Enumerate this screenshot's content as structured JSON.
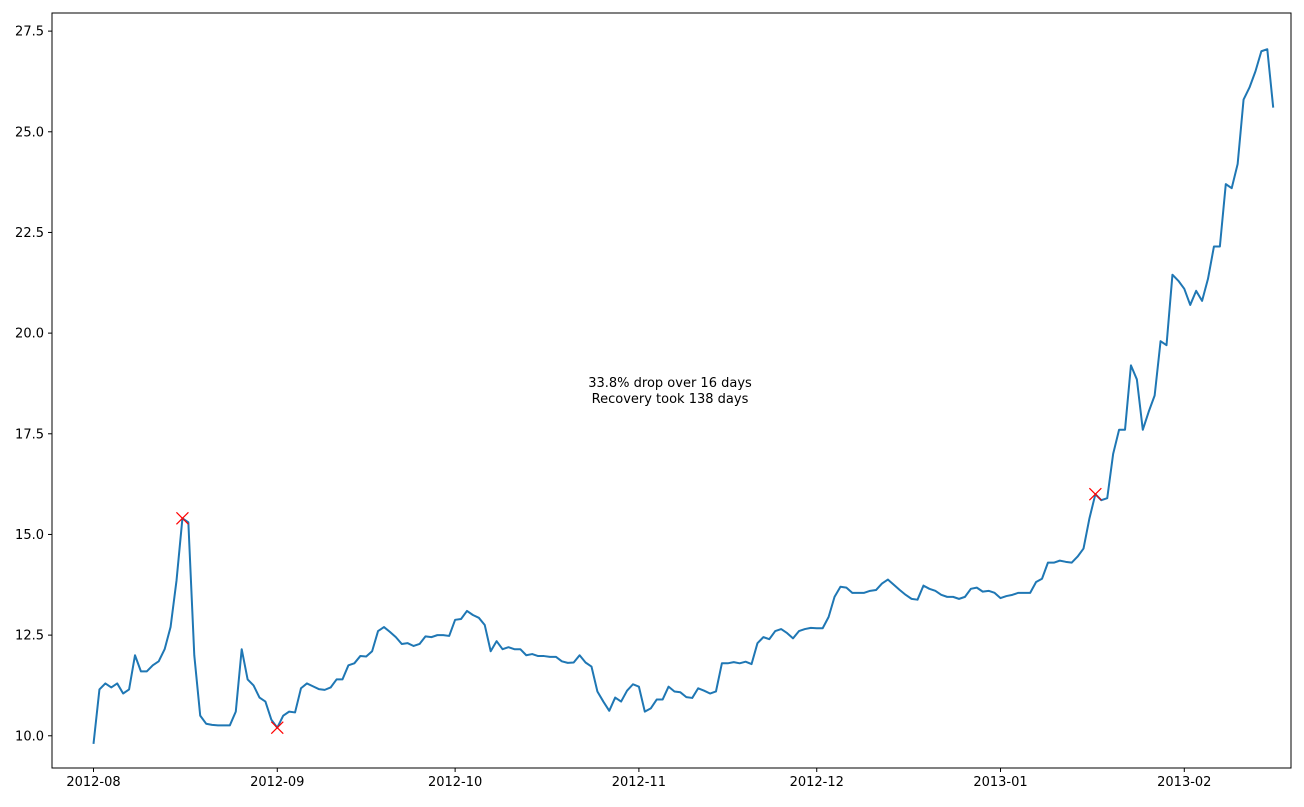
{
  "chart_data": {
    "type": "line",
    "title": "",
    "xlabel": "",
    "ylabel": "",
    "x_ticks": [
      "2012-08",
      "2012-09",
      "2012-10",
      "2012-11",
      "2012-12",
      "2013-01",
      "2013-02"
    ],
    "y_ticks": [
      "10.0",
      "12.5",
      "15.0",
      "17.5",
      "20.0",
      "22.5",
      "25.0",
      "27.5"
    ],
    "xlim": [
      "2012-07-25",
      "2013-02-19"
    ],
    "ylim": [
      9.2,
      27.95
    ],
    "grid": false,
    "colors": {
      "line": "#1f77b4",
      "markers": "#ff0000"
    },
    "series": [
      {
        "x": [
          "2012-08-01",
          "2012-08-02",
          "2012-08-03",
          "2012-08-04",
          "2012-08-05",
          "2012-08-06",
          "2012-08-07",
          "2012-08-08",
          "2012-08-09",
          "2012-08-10",
          "2012-08-11",
          "2012-08-12",
          "2012-08-13",
          "2012-08-14",
          "2012-08-15",
          "2012-08-16",
          "2012-08-17",
          "2012-08-18",
          "2012-08-19",
          "2012-08-20",
          "2012-08-21",
          "2012-08-22",
          "2012-08-23",
          "2012-08-24",
          "2012-08-25",
          "2012-08-26",
          "2012-08-27",
          "2012-08-28",
          "2012-08-29",
          "2012-08-30",
          "2012-08-31",
          "2012-09-01",
          "2012-09-02",
          "2012-09-03",
          "2012-09-04",
          "2012-09-05",
          "2012-09-06",
          "2012-09-07",
          "2012-09-08",
          "2012-09-09",
          "2012-09-10",
          "2012-09-11",
          "2012-09-12",
          "2012-09-13",
          "2012-09-14",
          "2012-09-15",
          "2012-09-16",
          "2012-09-17",
          "2012-09-18",
          "2012-09-19",
          "2012-09-20",
          "2012-09-21",
          "2012-09-22",
          "2012-09-23",
          "2012-09-24",
          "2012-09-25",
          "2012-09-26",
          "2012-09-27",
          "2012-09-28",
          "2012-09-29",
          "2012-09-30",
          "2012-10-01",
          "2012-10-02",
          "2012-10-03",
          "2012-10-04",
          "2012-10-05",
          "2012-10-06",
          "2012-10-07",
          "2012-10-08",
          "2012-10-09",
          "2012-10-10",
          "2012-10-11",
          "2012-10-12",
          "2012-10-13",
          "2012-10-14",
          "2012-10-15",
          "2012-10-16",
          "2012-10-17",
          "2012-10-18",
          "2012-10-19",
          "2012-10-20",
          "2012-10-21",
          "2012-10-22",
          "2012-10-23",
          "2012-10-24",
          "2012-10-25",
          "2012-10-26",
          "2012-10-27",
          "2012-10-28",
          "2012-10-29",
          "2012-10-30",
          "2012-10-31",
          "2012-11-01",
          "2012-11-02",
          "2012-11-03",
          "2012-11-04",
          "2012-11-05",
          "2012-11-06",
          "2012-11-07",
          "2012-11-08",
          "2012-11-09",
          "2012-11-10",
          "2012-11-11",
          "2012-11-12",
          "2012-11-13",
          "2012-11-14",
          "2012-11-15",
          "2012-11-16",
          "2012-11-17",
          "2012-11-18",
          "2012-11-19",
          "2012-11-20",
          "2012-11-21",
          "2012-11-22",
          "2012-11-23",
          "2012-11-24",
          "2012-11-25",
          "2012-11-26",
          "2012-11-27",
          "2012-11-28",
          "2012-11-29",
          "2012-11-30",
          "2012-12-01",
          "2012-12-02",
          "2012-12-03",
          "2012-12-04",
          "2012-12-05",
          "2012-12-06",
          "2012-12-07",
          "2012-12-08",
          "2012-12-09",
          "2012-12-10",
          "2012-12-11",
          "2012-12-12",
          "2012-12-13",
          "2012-12-14",
          "2012-12-15",
          "2012-12-16",
          "2012-12-17",
          "2012-12-18",
          "2012-12-19",
          "2012-12-20",
          "2012-12-21",
          "2012-12-22",
          "2012-12-23",
          "2012-12-24",
          "2012-12-25",
          "2012-12-26",
          "2012-12-27",
          "2012-12-28",
          "2012-12-29",
          "2012-12-30",
          "2012-12-31",
          "2013-01-01",
          "2013-01-02",
          "2013-01-03",
          "2013-01-04",
          "2013-01-05",
          "2013-01-06",
          "2013-01-07",
          "2013-01-08",
          "2013-01-09",
          "2013-01-10",
          "2013-01-11",
          "2013-01-12",
          "2013-01-13",
          "2013-01-14",
          "2013-01-15",
          "2013-01-16",
          "2013-01-17",
          "2013-01-18",
          "2013-01-19",
          "2013-01-20",
          "2013-01-21",
          "2013-01-22",
          "2013-01-23",
          "2013-01-24",
          "2013-01-25",
          "2013-01-26",
          "2013-01-27",
          "2013-01-28",
          "2013-01-29",
          "2013-01-30",
          "2013-01-31",
          "2013-02-01",
          "2013-02-02",
          "2013-02-03",
          "2013-02-04",
          "2013-02-05",
          "2013-02-06",
          "2013-02-07",
          "2013-02-08",
          "2013-02-09",
          "2013-02-10",
          "2013-02-11",
          "2013-02-12",
          "2013-02-13",
          "2013-02-14",
          "2013-02-15",
          "2013-02-16"
        ],
        "values": [
          9.8,
          11.15,
          11.3,
          11.2,
          11.3,
          11.05,
          11.15,
          12.0,
          11.6,
          11.6,
          11.75,
          11.85,
          12.15,
          12.7,
          13.85,
          15.4,
          15.3,
          12.0,
          10.5,
          10.3,
          10.27,
          10.26,
          10.26,
          10.26,
          10.6,
          12.15,
          11.4,
          11.25,
          10.95,
          10.85,
          10.4,
          10.2,
          10.5,
          10.6,
          10.58,
          11.18,
          11.3,
          11.23,
          11.16,
          11.14,
          11.2,
          11.4,
          11.4,
          11.75,
          11.8,
          11.98,
          11.97,
          12.1,
          12.6,
          12.7,
          12.58,
          12.45,
          12.28,
          12.3,
          12.23,
          12.28,
          12.47,
          12.45,
          12.5,
          12.5,
          12.48,
          12.88,
          12.9,
          13.1,
          13.0,
          12.93,
          12.75,
          12.1,
          12.35,
          12.15,
          12.2,
          12.15,
          12.15,
          12.0,
          12.03,
          11.98,
          11.98,
          11.96,
          11.96,
          11.85,
          11.81,
          11.82,
          12.0,
          11.82,
          11.72,
          11.1,
          10.85,
          10.62,
          10.95,
          10.85,
          11.12,
          11.28,
          11.22,
          10.6,
          10.68,
          10.9,
          10.9,
          11.22,
          11.1,
          11.08,
          10.96,
          10.94,
          11.18,
          11.12,
          11.05,
          11.1,
          11.8,
          11.8,
          11.83,
          11.8,
          11.84,
          11.78,
          12.3,
          12.45,
          12.4,
          12.6,
          12.65,
          12.55,
          12.42,
          12.6,
          12.65,
          12.68,
          12.67,
          12.67,
          12.95,
          13.45,
          13.7,
          13.68,
          13.55,
          13.55,
          13.55,
          13.6,
          13.62,
          13.78,
          13.88,
          13.75,
          13.62,
          13.5,
          13.4,
          13.38,
          13.73,
          13.65,
          13.6,
          13.5,
          13.45,
          13.45,
          13.4,
          13.45,
          13.65,
          13.68,
          13.58,
          13.6,
          13.55,
          13.42,
          13.47,
          13.5,
          13.55,
          13.55,
          13.55,
          13.82,
          13.9,
          14.3,
          14.3,
          14.35,
          14.32,
          14.3,
          14.45,
          14.65,
          15.4,
          16.0,
          15.85,
          15.9,
          17.0,
          17.6,
          17.6,
          19.2,
          18.85,
          17.6,
          18.05,
          18.45,
          19.8,
          19.7,
          21.45,
          21.3,
          21.1,
          20.7,
          21.05,
          20.8,
          21.35,
          22.15,
          22.15,
          23.7,
          23.6,
          24.2,
          25.8,
          26.1,
          26.5,
          27.0,
          27.05,
          25.6
        ]
      }
    ],
    "markers": [
      {
        "x": "2012-08-16",
        "y": 15.4
      },
      {
        "x": "2012-09-01",
        "y": 10.2
      },
      {
        "x": "2013-01-17",
        "y": 16.0
      }
    ],
    "annotation": [
      "33.8% drop over 16 days",
      "Recovery took 138 days"
    ]
  }
}
